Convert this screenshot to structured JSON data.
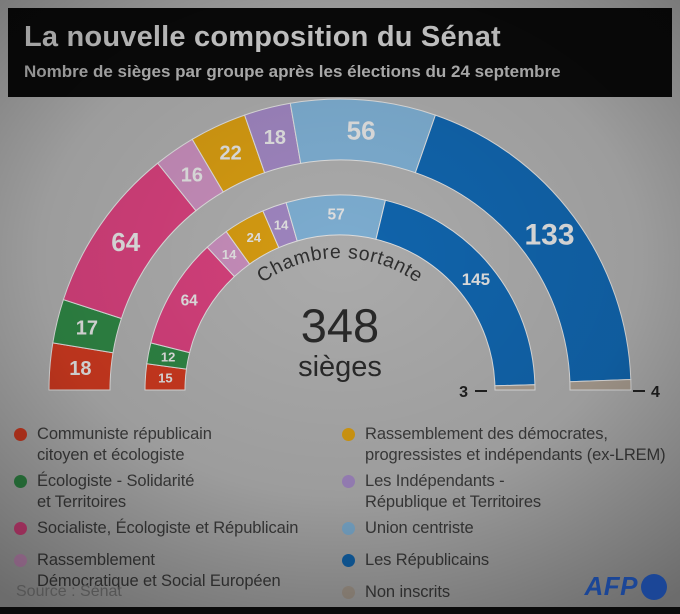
{
  "header": {
    "title": "La nouvelle composition du Sénat",
    "subtitle": "Nombre de sièges par groupe après les élections du 24 septembre"
  },
  "center": {
    "total": "348",
    "total_unit": "sièges",
    "inner_ring_label": "Chambre sortante"
  },
  "chart_data": {
    "type": "hemicycle-donut",
    "title": "La nouvelle composition du Sénat",
    "total_seats": 348,
    "rings": [
      {
        "id": "outer",
        "seats_key": "seats_new"
      },
      {
        "id": "inner",
        "seats_key": "seats_outgoing",
        "label": "Chambre sortante"
      }
    ],
    "groups": [
      {
        "name": "Communiste républicain citoyen et écologiste",
        "color": "#cf3a20",
        "seats_new": 18,
        "seats_outgoing": 15,
        "legend_column": "left",
        "legend_lines": [
          "Communiste républicain",
          "citoyen et écologiste"
        ]
      },
      {
        "name": "Écologiste - Solidarité et Territoires",
        "color": "#2f8745",
        "seats_new": 17,
        "seats_outgoing": 12,
        "legend_column": "left",
        "legend_lines": [
          "Écologiste - Solidarité",
          "et Territoires"
        ]
      },
      {
        "name": "Socialiste, Écologiste et Républicain",
        "color": "#d7417d",
        "seats_new": 64,
        "seats_outgoing": 64,
        "legend_column": "left",
        "legend_lines": [
          "Socialiste, Écologiste et Républicain"
        ]
      },
      {
        "name": "Rassemblement Démocratique et Social Européen",
        "color": "#c98fbd",
        "seats_new": 16,
        "seats_outgoing": 14,
        "legend_column": "left",
        "legend_lines": [
          "Rassemblement",
          "Démocratique et Social Européen"
        ]
      },
      {
        "name": "Rassemblement des démocrates, progressistes et indépendants (ex-LREM)",
        "color": "#d89d12",
        "seats_new": 22,
        "seats_outgoing": 24,
        "legend_column": "right",
        "legend_lines": [
          "Rassemblement des démocrates,",
          "progressistes et indépendants (ex-LREM)"
        ]
      },
      {
        "name": "Les Indépendants - République et Territoires",
        "color": "#a187c2",
        "seats_new": 18,
        "seats_outgoing": 14,
        "legend_column": "right",
        "legend_lines": [
          "Les Indépendants -",
          "République et Territoires"
        ]
      },
      {
        "name": "Union centriste",
        "color": "#7fb0d4",
        "seats_new": 56,
        "seats_outgoing": 57,
        "legend_column": "right",
        "legend_lines": [
          "Union centriste"
        ]
      },
      {
        "name": "Les Républicains",
        "color": "#1166af",
        "seats_new": 133,
        "seats_outgoing": 145,
        "legend_column": "right",
        "legend_lines": [
          "Les Républicains"
        ]
      },
      {
        "name": "Non inscrits",
        "color": "#ab9f92",
        "seats_new": 4,
        "seats_outgoing": 3,
        "legend_column": "right",
        "legend_lines": [
          "Non inscrits"
        ],
        "label_outside": true
      }
    ]
  },
  "footer": {
    "source": "Source : Sénat",
    "brand": "AFP"
  }
}
